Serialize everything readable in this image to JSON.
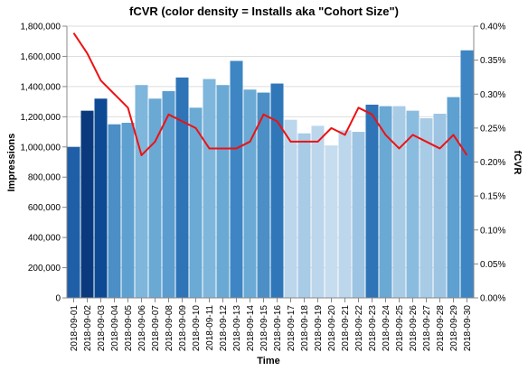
{
  "chart_data": {
    "type": "bar",
    "title": "fCVR (color density = Installs aka \"Cohort Size\")",
    "xlabel": "Time",
    "ylabel": "Impressions",
    "y2label": "fCVR",
    "ylim": [
      0,
      1800000
    ],
    "y2lim": [
      0,
      0.004
    ],
    "y_ticks": [
      "0",
      "200,000",
      "400,000",
      "600,000",
      "800,000",
      "1,000,000",
      "1,200,000",
      "1,400,000",
      "1,600,000",
      "1,800,000"
    ],
    "y2_ticks": [
      "0.00%",
      "0.05%",
      "0.10%",
      "0.15%",
      "0.20%",
      "0.25%",
      "0.30%",
      "0.35%",
      "0.40%"
    ],
    "grid": true,
    "categories": [
      "2018-09-01",
      "2018-09-02",
      "2018-09-03",
      "2018-09-04",
      "2018-09-05",
      "2018-09-06",
      "2018-09-07",
      "2018-09-08",
      "2018-09-09",
      "2018-09-10",
      "2018-09-11",
      "2018-09-12",
      "2018-09-13",
      "2018-09-14",
      "2018-09-15",
      "2018-09-16",
      "2018-09-17",
      "2018-09-18",
      "2018-09-19",
      "2018-09-20",
      "2018-09-21",
      "2018-09-22",
      "2018-09-23",
      "2018-09-24",
      "2018-09-25",
      "2018-09-26",
      "2018-09-27",
      "2018-09-28",
      "2018-09-29",
      "2018-09-30"
    ],
    "series": [
      {
        "type": "bar",
        "axis": "left",
        "values": [
          1000000,
          1240000,
          1320000,
          1150000,
          1160000,
          1410000,
          1320000,
          1370000,
          1460000,
          1260000,
          1450000,
          1410000,
          1570000,
          1380000,
          1360000,
          1420000,
          1180000,
          1090000,
          1140000,
          1010000,
          1110000,
          1100000,
          1280000,
          1270000,
          1270000,
          1240000,
          1190000,
          1220000,
          1330000,
          1640000
        ],
        "colors": [
          "#1f5fa8",
          "#0a3a7d",
          "#0d4a93",
          "#4b8fc6",
          "#5ea0d0",
          "#7fb6db",
          "#6aa9d4",
          "#5b9dcf",
          "#2e74b7",
          "#6aaad5",
          "#7fb6db",
          "#6aa9d4",
          "#3d86c3",
          "#6aaad5",
          "#4b8fc6",
          "#2f77b9",
          "#bcd6ec",
          "#a8cbe6",
          "#bcd6ec",
          "#c6ddef",
          "#bcd6ec",
          "#9dc5e3",
          "#2e74b7",
          "#6aa9d4",
          "#a8cbe6",
          "#8abcdf",
          "#a8cbe6",
          "#9dc5e3",
          "#5ea0d0",
          "#3d86c3"
        ]
      },
      {
        "type": "line",
        "axis": "right",
        "color": "#ee1111",
        "values": [
          0.0039,
          0.0036,
          0.0032,
          0.003,
          0.0028,
          0.0021,
          0.0023,
          0.0027,
          0.0026,
          0.0025,
          0.0022,
          0.0022,
          0.0022,
          0.0023,
          0.0027,
          0.0026,
          0.0023,
          0.0023,
          0.0023,
          0.0025,
          0.0024,
          0.0028,
          0.0027,
          0.0024,
          0.0022,
          0.0024,
          0.0023,
          0.0022,
          0.0024,
          0.0021
        ]
      }
    ]
  }
}
